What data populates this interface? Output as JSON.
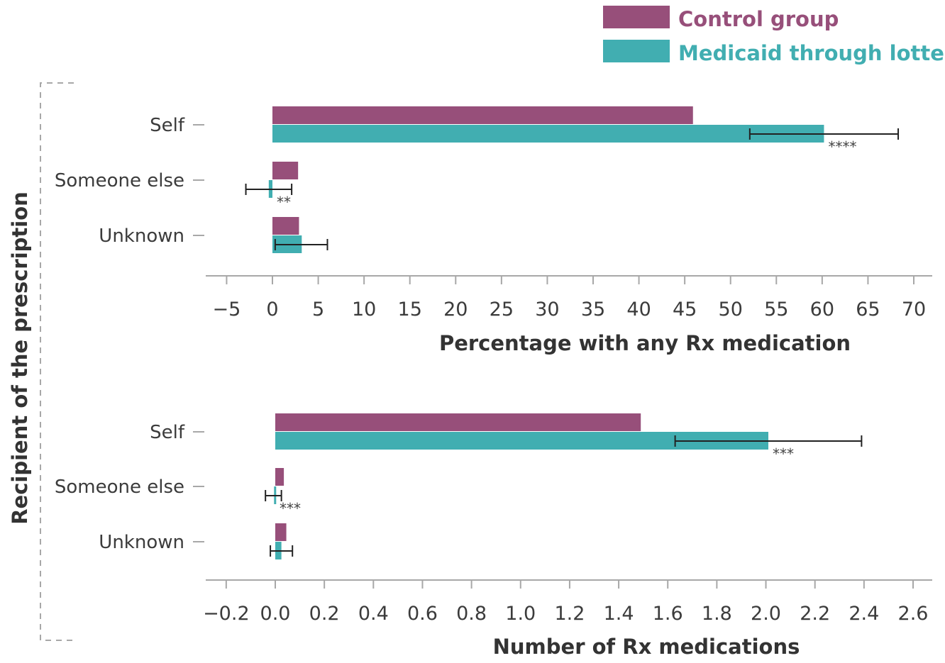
{
  "legend": [
    {
      "label": "Control group",
      "color": "#974f7a"
    },
    {
      "label": "Medicaid through lottery",
      "color": "#41aeb1"
    }
  ],
  "y_axis_title": "Recipient of the prescription",
  "chart_data": [
    {
      "type": "bar",
      "orientation": "horizontal",
      "xlabel": "Percentage with any Rx medication",
      "xlim": [
        -5,
        70
      ],
      "xticks": [
        -5,
        0,
        5,
        10,
        15,
        20,
        25,
        30,
        35,
        40,
        45,
        50,
        55,
        60,
        65,
        70
      ],
      "xtick_labels": [
        "−5",
        "0",
        "5",
        "10",
        "15",
        "20",
        "25",
        "30",
        "35",
        "40",
        "45",
        "50",
        "55",
        "60",
        "65",
        "70"
      ],
      "categories": [
        "Self",
        "Someone else",
        "Unknown"
      ],
      "series": [
        {
          "name": "Control group",
          "values": [
            45.9,
            2.8,
            2.9
          ]
        },
        {
          "name": "Medicaid through lottery",
          "values": [
            60.2,
            -0.4,
            3.2
          ],
          "error_low": [
            52.1,
            -2.9,
            0.3
          ],
          "error_high": [
            68.3,
            2.1,
            6.0
          ],
          "significance": [
            "****",
            "**",
            ""
          ]
        }
      ]
    },
    {
      "type": "bar",
      "orientation": "horizontal",
      "xlabel": "Number of Rx medications",
      "xlim": [
        -0.2,
        2.6
      ],
      "xticks": [
        -0.2,
        0.0,
        0.2,
        0.4,
        0.6,
        0.8,
        1.0,
        1.2,
        1.4,
        1.6,
        1.8,
        2.0,
        2.2,
        2.4,
        2.6
      ],
      "xtick_labels": [
        "−0.2",
        "0.0",
        "0.2",
        "0.4",
        "0.6",
        "0.8",
        "1.0",
        "1.2",
        "1.4",
        "1.6",
        "1.8",
        "2.0",
        "2.2",
        "2.4",
        "2.6"
      ],
      "categories": [
        "Self",
        "Someone else",
        "Unknown"
      ],
      "series": [
        {
          "name": "Control group",
          "values": [
            1.49,
            0.035,
            0.045
          ]
        },
        {
          "name": "Medicaid through lottery",
          "values": [
            2.01,
            -0.005,
            0.025
          ],
          "error_low": [
            1.63,
            -0.04,
            -0.02
          ],
          "error_high": [
            2.39,
            0.025,
            0.07
          ],
          "significance": [
            "***",
            "***",
            ""
          ]
        }
      ]
    }
  ]
}
